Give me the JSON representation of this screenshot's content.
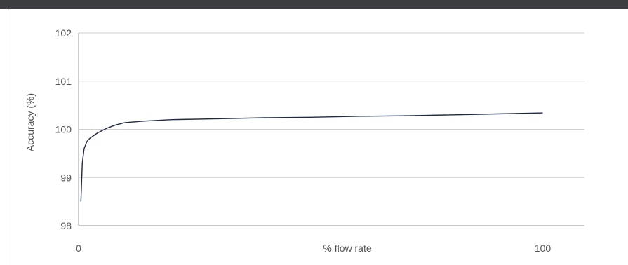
{
  "chart_data": {
    "type": "line",
    "title": "",
    "xlabel": "% flow rate",
    "ylabel": "Accuracy (%)",
    "xlim": [
      0,
      109
    ],
    "ylim": [
      98,
      102
    ],
    "x_ticks": [
      0,
      100
    ],
    "y_ticks": [
      98,
      99,
      100,
      101,
      102
    ],
    "grid": "horizontal",
    "series": [
      {
        "color": "#1f2a44",
        "x": [
          0.5,
          0.8,
          1.2,
          1.8,
          2.5,
          4,
          6,
          8,
          10,
          14,
          20,
          30,
          40,
          50,
          60,
          70,
          80,
          90,
          100
        ],
        "y": [
          98.5,
          99.3,
          99.6,
          99.75,
          99.82,
          99.92,
          100.02,
          100.09,
          100.14,
          100.17,
          100.2,
          100.22,
          100.24,
          100.25,
          100.27,
          100.28,
          100.3,
          100.32,
          100.34
        ]
      }
    ]
  }
}
